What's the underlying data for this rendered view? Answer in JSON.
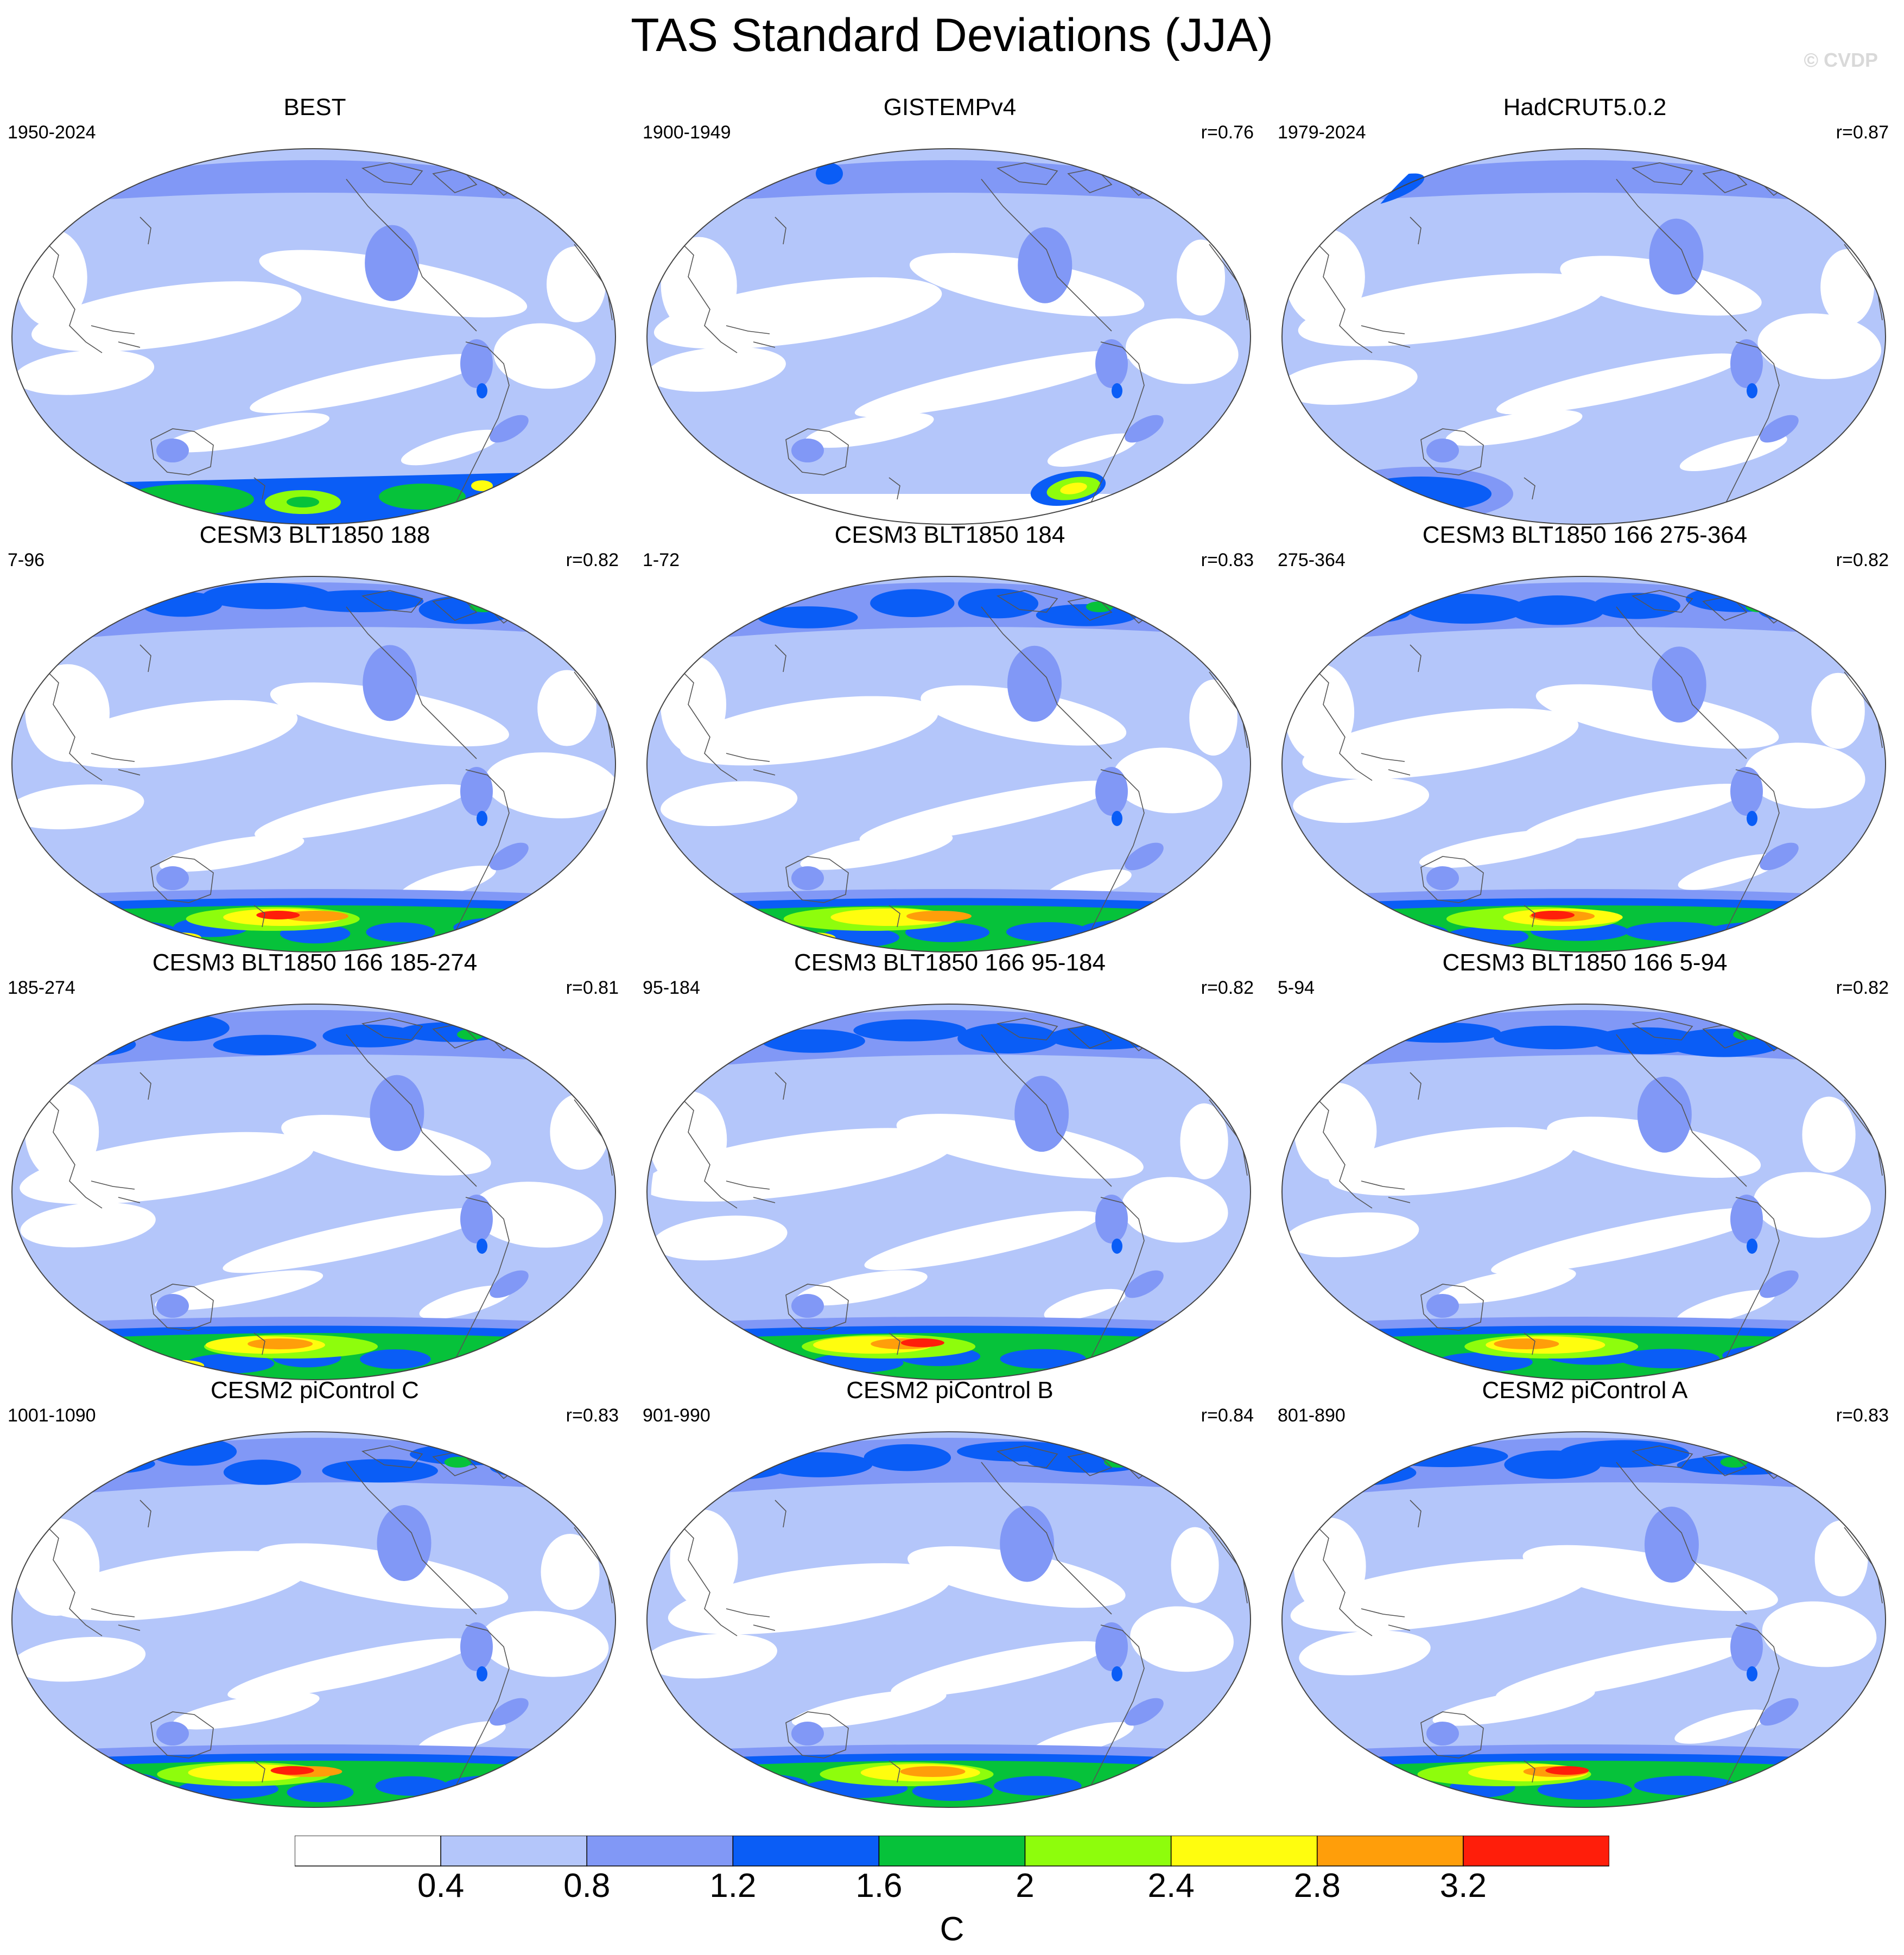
{
  "title": "TAS Standard Deviations (JJA)",
  "watermark": "© CVDP",
  "panels": [
    {
      "title": "BEST",
      "period": "1950-2024",
      "corr": ""
    },
    {
      "title": "GISTEMPv4",
      "period": "1900-1949",
      "corr": "r=0.76"
    },
    {
      "title": "HadCRUT5.0.2",
      "period": "1979-2024",
      "corr": "r=0.87"
    },
    {
      "title": "CESM3 BLT1850 188",
      "period": "7-96",
      "corr": "r=0.82"
    },
    {
      "title": "CESM3 BLT1850 184",
      "period": "1-72",
      "corr": "r=0.83"
    },
    {
      "title": "CESM3 BLT1850 166 275-364",
      "period": "275-364",
      "corr": "r=0.82"
    },
    {
      "title": "CESM3 BLT1850 166 185-274",
      "period": "185-274",
      "corr": "r=0.81"
    },
    {
      "title": "CESM3 BLT1850 166 95-184",
      "period": "95-184",
      "corr": "r=0.82"
    },
    {
      "title": "CESM3 BLT1850 166 5-94",
      "period": "5-94",
      "corr": "r=0.82"
    },
    {
      "title": "CESM2 piControl C",
      "period": "1001-1090",
      "corr": "r=0.83"
    },
    {
      "title": "CESM2 piControl B",
      "period": "901-990",
      "corr": "r=0.84"
    },
    {
      "title": "CESM2 piControl A",
      "period": "801-890",
      "corr": "r=0.83"
    }
  ],
  "colorbar": {
    "labels": [
      "0.4",
      "0.8",
      "1.2",
      "1.6",
      "2",
      "2.4",
      "2.8",
      "3.2"
    ],
    "colors": [
      "#ffffff",
      "#b4c6fa",
      "#8198f6",
      "#0a5df6",
      "#06c23a",
      "#8efd0c",
      "#fffd0e",
      "#ff9e0a",
      "#ff1e0a"
    ],
    "units": "C"
  }
}
